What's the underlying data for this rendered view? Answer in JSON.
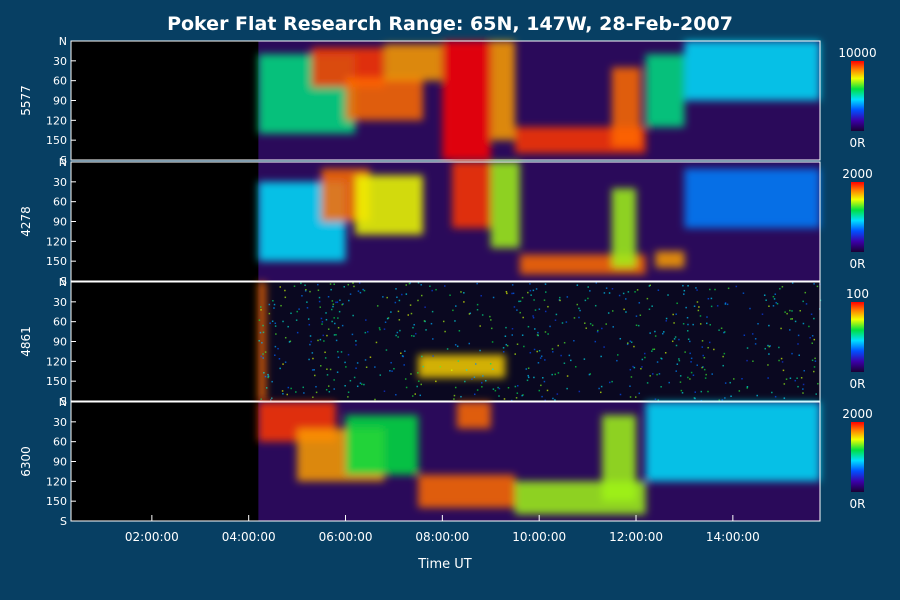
{
  "chart_data": {
    "type": "heatmap",
    "title": "Poker Flat Research Range: 65N, 147W, 28-Feb-2007",
    "xlabel": "Time UT",
    "x_ticks": [
      "02:00:00",
      "04:00:00",
      "06:00:00",
      "08:00:00",
      "10:00:00",
      "12:00:00",
      "14:00:00"
    ],
    "x_range_hours": [
      0.33,
      15.8
    ],
    "y_tick_labels": [
      "N",
      "30",
      "60",
      "90",
      "120",
      "150",
      "S"
    ],
    "y_range_deg": [
      0,
      180
    ],
    "colormap": "rainbow (purple-blue-cyan-green-yellow-red)",
    "colorbar_min_label": "0R",
    "data_start_hour": 4.2,
    "panels": [
      {
        "wavelength": "5577",
        "colorbar_max": "10000",
        "features": [
          {
            "t0": 4.2,
            "t1": 6.2,
            "y0": 20,
            "y1": 140,
            "level": 0.55
          },
          {
            "t0": 5.3,
            "t1": 6.8,
            "y0": 10,
            "y1": 70,
            "level": 0.95
          },
          {
            "t0": 6.0,
            "t1": 7.6,
            "y0": 55,
            "y1": 120,
            "level": 0.9
          },
          {
            "t0": 6.8,
            "t1": 8.0,
            "y0": 5,
            "y1": 60,
            "level": 0.85
          },
          {
            "t0": 8.0,
            "t1": 9.0,
            "y0": 0,
            "y1": 180,
            "level": 1.0
          },
          {
            "t0": 9.0,
            "t1": 9.5,
            "y0": 0,
            "y1": 150,
            "level": 0.85
          },
          {
            "t0": 9.5,
            "t1": 12.2,
            "y0": 130,
            "y1": 170,
            "level": 0.95
          },
          {
            "t0": 11.5,
            "t1": 12.1,
            "y0": 40,
            "y1": 160,
            "level": 0.9
          },
          {
            "t0": 12.2,
            "t1": 13.0,
            "y0": 20,
            "y1": 130,
            "level": 0.55
          },
          {
            "t0": 13.0,
            "t1": 15.8,
            "y0": 0,
            "y1": 90,
            "level": 0.45
          }
        ]
      },
      {
        "wavelength": "4278",
        "colorbar_max": "2000",
        "features": [
          {
            "t0": 4.2,
            "t1": 6.0,
            "y0": 30,
            "y1": 150,
            "level": 0.45
          },
          {
            "t0": 5.5,
            "t1": 6.5,
            "y0": 10,
            "y1": 90,
            "level": 0.9
          },
          {
            "t0": 6.2,
            "t1": 7.6,
            "y0": 20,
            "y1": 110,
            "level": 0.75
          },
          {
            "t0": 8.2,
            "t1": 9.0,
            "y0": 0,
            "y1": 100,
            "level": 0.95
          },
          {
            "t0": 9.0,
            "t1": 9.6,
            "y0": 0,
            "y1": 130,
            "level": 0.7
          },
          {
            "t0": 9.6,
            "t1": 12.2,
            "y0": 140,
            "y1": 170,
            "level": 0.9
          },
          {
            "t0": 11.5,
            "t1": 12.0,
            "y0": 40,
            "y1": 160,
            "level": 0.7
          },
          {
            "t0": 12.4,
            "t1": 13.0,
            "y0": 135,
            "y1": 160,
            "level": 0.85
          },
          {
            "t0": 13.0,
            "t1": 15.8,
            "y0": 10,
            "y1": 100,
            "level": 0.35
          }
        ]
      },
      {
        "wavelength": "4861",
        "colorbar_max": "100",
        "features": [
          {
            "t0": 4.2,
            "t1": 4.35,
            "y0": 0,
            "y1": 180,
            "level": 0.9
          },
          {
            "t0": 7.5,
            "t1": 9.3,
            "y0": 110,
            "y1": 145,
            "level": 0.8
          }
        ]
      },
      {
        "wavelength": "6300",
        "colorbar_max": "2000",
        "features": [
          {
            "t0": 4.2,
            "t1": 5.8,
            "y0": 0,
            "y1": 60,
            "level": 0.95
          },
          {
            "t0": 5.0,
            "t1": 6.8,
            "y0": 40,
            "y1": 120,
            "level": 0.85
          },
          {
            "t0": 6.0,
            "t1": 7.5,
            "y0": 20,
            "y1": 110,
            "level": 0.6
          },
          {
            "t0": 7.5,
            "t1": 9.5,
            "y0": 110,
            "y1": 160,
            "level": 0.9
          },
          {
            "t0": 8.3,
            "t1": 9.0,
            "y0": 0,
            "y1": 40,
            "level": 0.9
          },
          {
            "t0": 9.5,
            "t1": 12.2,
            "y0": 120,
            "y1": 170,
            "level": 0.7
          },
          {
            "t0": 11.3,
            "t1": 12.0,
            "y0": 20,
            "y1": 150,
            "level": 0.7
          },
          {
            "t0": 12.2,
            "t1": 15.8,
            "y0": 0,
            "y1": 120,
            "level": 0.45
          }
        ]
      }
    ]
  }
}
